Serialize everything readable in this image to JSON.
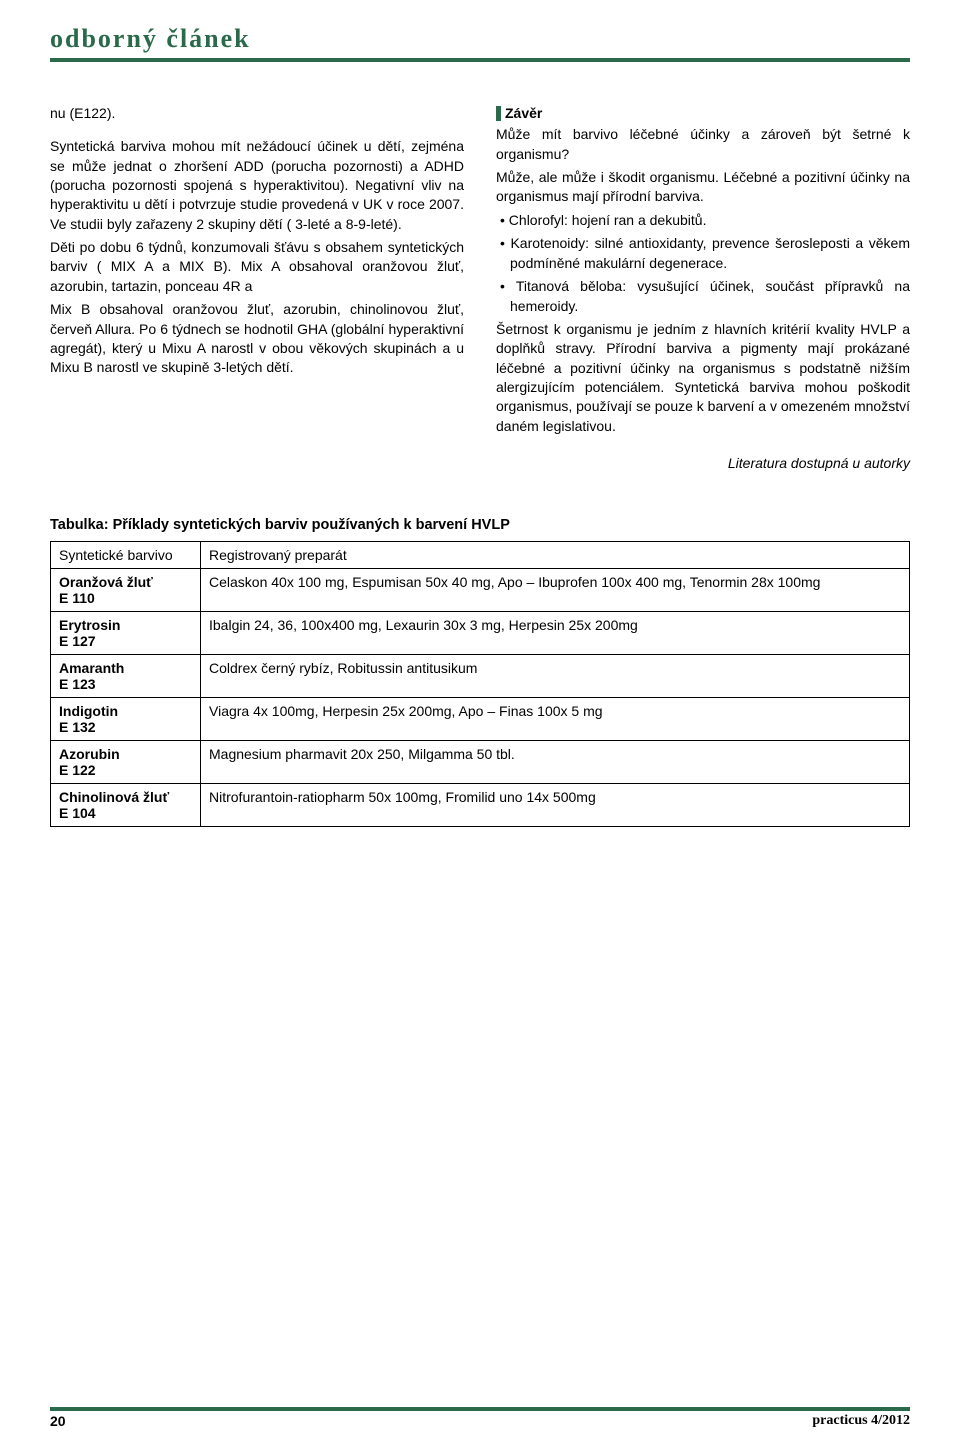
{
  "header": {
    "title": "odborný článek"
  },
  "left": {
    "p1": "nu (E122).",
    "p2": "Syntetická barviva mohou mít nežádoucí účinek u dětí, zejména se může jednat o zhoršení ADD (porucha pozornosti) a ADHD (porucha pozornosti spojená s hyperaktivitou). Negativní vliv na hyperaktivitu u dětí i potvrzuje studie provedená v UK v roce 2007. Ve studii byly zařazeny 2 skupiny dětí ( 3-leté a 8-9-leté).",
    "p3": "Děti po dobu 6 týdnů, konzumovali šťávu s obsahem syntetických barviv ( MIX A a MIX B). Mix A obsahoval oranžovou žluť, azorubin, tartazin, ponceau 4R a",
    "p4": "Mix B obsahoval oranžovou žluť, azorubin, chinolinovou žluť, červeň Allura. Po 6 týdnech se hodnotil GHA (globální hyperaktivní agregát), který u Mixu A narostl v obou věkových skupinách a u Mixu B narostl ve skupině 3-letých dětí."
  },
  "right": {
    "heading": "Závěr",
    "p1": "Může mít barvivo léčebné účinky a zároveň být šetrné k organismu?",
    "p2": "Může, ale může i škodit organismu. Léčebné a pozitivní účinky na organismus mají přírodní barviva.",
    "b1": "• Chlorofyl: hojení ran a dekubitů.",
    "b2": "• Karotenoidy: silné antioxidanty, prevence šerosleposti a věkem podmíněné makulární degenerace.",
    "b3": "• Titanová běloba: vysušující účinek, součást přípravků na hemeroidy.",
    "p3": "Šetrnost k organismu je jedním z hlavních kritérií kvality HVLP a doplňků stravy. Přírodní barviva a pigmenty mají prokázané léčebné a pozitivní účinky na organismus s podstatně nižším alergizujícím potenciálem. Syntetická barviva mohou poškodit organismus, používají se pouze k barvení a v omezeném množství daném legislativou.",
    "lit": "Literatura dostupná u autorky"
  },
  "table": {
    "title": "Tabulka: Příklady syntetických barviv používaných k barvení HVLP",
    "head_left": "Syntetické barvivo",
    "head_right": "Registrovaný preparát",
    "rows": [
      {
        "name": "Oranžová žluť",
        "code": "E 110",
        "prep": "Celaskon 40x 100 mg, Espumisan 50x 40 mg, Apo – Ibuprofen 100x 400 mg, Tenormin 28x 100mg"
      },
      {
        "name": "Erytrosin",
        "code": "E 127",
        "prep": "Ibalgin 24, 36, 100x400 mg, Lexaurin 30x 3 mg, Herpesin 25x 200mg"
      },
      {
        "name": "Amaranth",
        "code": "E 123",
        "prep": "Coldrex černý rybíz, Robitussin antitusikum"
      },
      {
        "name": "Indigotin",
        "code": "E 132",
        "prep": "Viagra 4x 100mg, Herpesin 25x 200mg, Apo – Finas 100x 5 mg"
      },
      {
        "name": "Azorubin",
        "code": "E 122",
        "prep": "Magnesium pharmavit 20x 250, Milgamma 50 tbl."
      },
      {
        "name": "Chinolinová žluť",
        "code": "E 104",
        "prep": "Nitrofurantoin-ratiopharm 50x 100mg, Fromilid uno 14x 500mg"
      }
    ]
  },
  "footer": {
    "page": "20",
    "issue": "practicus 4/2012"
  }
}
